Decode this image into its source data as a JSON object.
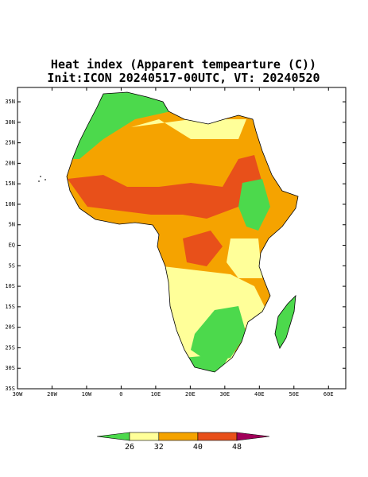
{
  "map": {
    "type": "map",
    "title": "Heat index (Apparent tempearture (C))",
    "subtitle": "Init:ICON 20240517-00UTC, VT: 20240520",
    "xlim": [
      -30,
      65
    ],
    "ylim": [
      -35,
      38.5
    ],
    "xticks": [
      {
        "value": -30,
        "label": "30W"
      },
      {
        "value": -20,
        "label": "20W"
      },
      {
        "value": -10,
        "label": "10W"
      },
      0,
      {
        "value": 10,
        "label": "10E"
      },
      {
        "value": 20,
        "label": "20E"
      },
      {
        "value": 30,
        "label": "30E"
      },
      {
        "value": 40,
        "label": "40E"
      },
      {
        "value": 50,
        "label": "50E"
      },
      {
        "value": 60,
        "label": "60E"
      }
    ],
    "yticks": [
      {
        "value": 35,
        "label": "35N"
      },
      {
        "value": 30,
        "label": "30N"
      },
      {
        "value": 25,
        "label": "25N"
      },
      {
        "value": 20,
        "label": "20N"
      },
      {
        "value": 15,
        "label": "15N"
      },
      {
        "value": 10,
        "label": "10N"
      },
      {
        "value": 5,
        "label": "5N"
      },
      {
        "value": 0,
        "label": "EQ"
      },
      {
        "value": -5,
        "label": "5S"
      },
      {
        "value": -10,
        "label": "10S"
      },
      {
        "value": -15,
        "label": "15S"
      },
      {
        "value": -20,
        "label": "20S"
      },
      {
        "value": -25,
        "label": "25S"
      },
      {
        "value": -30,
        "label": "30S"
      },
      {
        "value": -35,
        "label": "35S"
      }
    ],
    "colorbar": {
      "levels": [
        26,
        32,
        40,
        48
      ],
      "colors": [
        "#4cd94c",
        "#ffff99",
        "#f5a300",
        "#e8501a",
        "#a0005a"
      ]
    }
  }
}
